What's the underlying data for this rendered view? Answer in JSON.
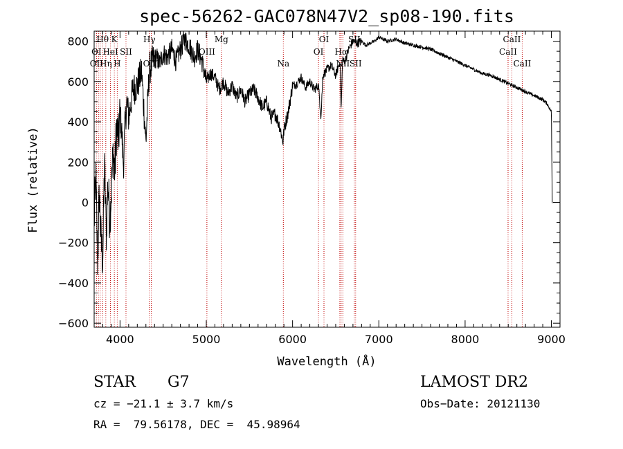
{
  "chart_data": {
    "type": "line",
    "title": "spec-56262-GAC078N47V2_sp08-190.fits",
    "xlabel": "Wavelength (Å)",
    "ylabel": "Flux (relative)",
    "xlim": [
      3700,
      9100
    ],
    "ylim": [
      -620,
      850
    ],
    "xticks": [
      4000,
      5000,
      6000,
      7000,
      8000,
      9000
    ],
    "yticks": [
      -600,
      -400,
      -200,
      0,
      200,
      400,
      600,
      800
    ],
    "grid": false,
    "series": [
      {
        "color": "#000000",
        "x": [
          3700,
          3720,
          3740,
          3760,
          3780,
          3800,
          3820,
          3840,
          3860,
          3880,
          3900,
          3920,
          3940,
          3960,
          3980,
          4000,
          4020,
          4040,
          4060,
          4080,
          4100,
          4150,
          4200,
          4250,
          4300,
          4340,
          4380,
          4420,
          4460,
          4500,
          4550,
          4600,
          4650,
          4700,
          4750,
          4800,
          4860,
          4900,
          4950,
          5000,
          5050,
          5100,
          5150,
          5200,
          5250,
          5300,
          5350,
          5400,
          5450,
          5500,
          5550,
          5600,
          5650,
          5700,
          5750,
          5800,
          5850,
          5890,
          5900,
          5950,
          6000,
          6050,
          6100,
          6150,
          6200,
          6250,
          6300,
          6330,
          6350,
          6400,
          6450,
          6500,
          6550,
          6563,
          6580,
          6600,
          6650,
          6700,
          6750,
          6800,
          6850,
          6900,
          6950,
          7000,
          7100,
          7200,
          7300,
          7400,
          7500,
          7600,
          7700,
          7800,
          7900,
          8000,
          8100,
          8200,
          8300,
          8400,
          8500,
          8600,
          8700,
          8800,
          8900,
          8950,
          9000,
          9010
        ],
        "y": [
          -100,
          120,
          -300,
          50,
          -200,
          -280,
          200,
          -150,
          100,
          -80,
          60,
          250,
          150,
          380,
          300,
          440,
          350,
          180,
          400,
          500,
          420,
          560,
          580,
          650,
          300,
          660,
          700,
          720,
          690,
          740,
          720,
          760,
          700,
          760,
          810,
          780,
          720,
          760,
          700,
          600,
          640,
          620,
          560,
          600,
          540,
          580,
          520,
          560,
          500,
          540,
          560,
          520,
          470,
          500,
          420,
          440,
          380,
          300,
          360,
          450,
          580,
          590,
          620,
          570,
          600,
          560,
          580,
          420,
          630,
          660,
          680,
          630,
          700,
          450,
          720,
          690,
          760,
          800,
          790,
          800,
          780,
          790,
          800,
          820,
          800,
          810,
          790,
          780,
          770,
          760,
          740,
          720,
          700,
          680,
          660,
          640,
          630,
          610,
          590,
          570,
          550,
          530,
          510,
          490,
          450,
          0
        ]
      }
    ],
    "line_markers": [
      {
        "label": "Hθ",
        "x": 3798,
        "row": 0
      },
      {
        "label": "K",
        "x": 3934,
        "row": 0
      },
      {
        "label": "Hγ",
        "x": 4340,
        "row": 0
      },
      {
        "label": "Mg",
        "x": 5175,
        "row": 0
      },
      {
        "label": "OI",
        "x": 6364,
        "row": 0
      },
      {
        "label": "SII",
        "x": 6716,
        "row": 0
      },
      {
        "label": "CaII",
        "x": 8542,
        "row": 0
      },
      {
        "label": "OI",
        "x": 3727,
        "row": 1
      },
      {
        "label": "HeI",
        "x": 3889,
        "row": 1
      },
      {
        "label": "SII",
        "x": 4069,
        "row": 1
      },
      {
        "label": "OIII",
        "x": 5007,
        "row": 1
      },
      {
        "label": "OI",
        "x": 6300,
        "row": 1
      },
      {
        "label": "Hα",
        "x": 6563,
        "row": 1
      },
      {
        "label": "CaII",
        "x": 8498,
        "row": 1
      },
      {
        "label": "OII",
        "x": 3727,
        "row": 2
      },
      {
        "label": "Hη",
        "x": 3835,
        "row": 2
      },
      {
        "label": "H",
        "x": 3968,
        "row": 2
      },
      {
        "label": "OIII",
        "x": 4363,
        "row": 2
      },
      {
        "label": "Na",
        "x": 5893,
        "row": 2
      },
      {
        "label": "NII",
        "x": 6583,
        "row": 2
      },
      {
        "label": "SII",
        "x": 6731,
        "row": 2
      },
      {
        "label": "CaII",
        "x": 8662,
        "row": 2
      }
    ],
    "line_wavelengths": [
      3727,
      3750,
      3770,
      3798,
      3835,
      3889,
      3934,
      3968,
      4069,
      4340,
      4363,
      5007,
      5175,
      5893,
      6300,
      6364,
      6548,
      6563,
      6583,
      6716,
      6731,
      8498,
      8542,
      8662
    ]
  },
  "info": {
    "class_label": "STAR",
    "subclass": "G7",
    "survey": "LAMOST DR2",
    "redshift_text": "cz = −21.1 ± 3.7 km/s",
    "obs_date_text": "Obs−Date: 20121130",
    "coords_text": "RA =  79.56178, DEC =  45.98964"
  }
}
